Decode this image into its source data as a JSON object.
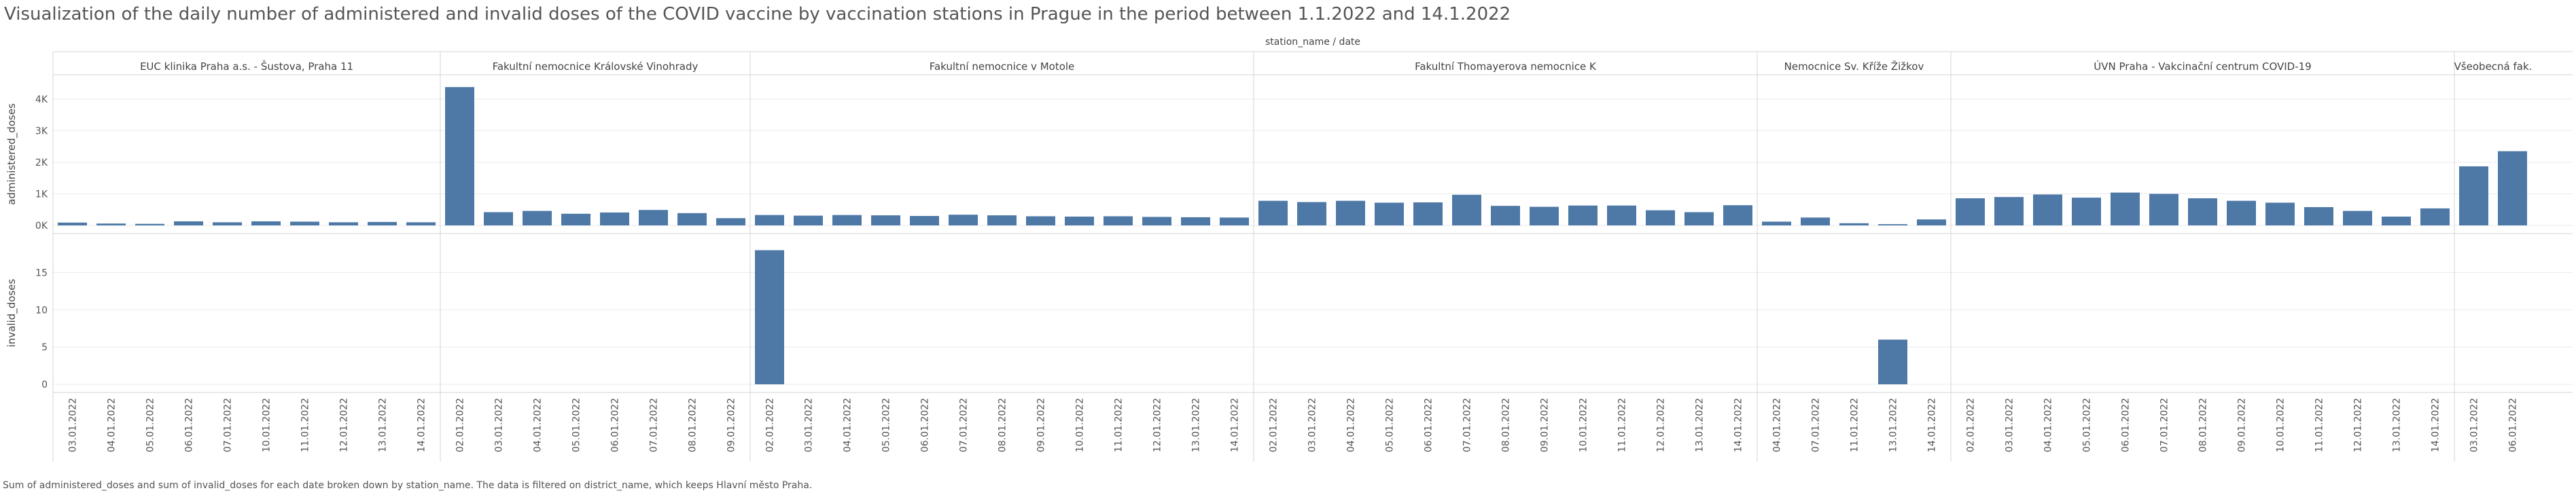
{
  "title": "Visualization of the daily number of administered and invalid doses of the COVID vaccine by vaccination stations in Prague in the period between 1.1.2022 and 14.1.2022",
  "caption": "Sum of administered_doses and sum of invalid_doses for each date broken down by station_name. The data is filtered on district_name, which keeps Hlavní město Praha.",
  "colors": {
    "bar": "#4e79a7",
    "grid": "#ebebeb",
    "divider": "#d4d4d4",
    "text": "#555555"
  },
  "chart_data": {
    "type": "bar",
    "header_label": "station_name  /  date",
    "panels": [
      {
        "ylabel": "administered_doses",
        "ylim": [
          0,
          4600
        ],
        "ticks": [
          0,
          1000,
          2000,
          3000,
          4000
        ],
        "tick_labels": [
          "0K",
          "1K",
          "2K",
          "3K",
          "4K"
        ],
        "key": "administered"
      },
      {
        "ylabel": "invalid_doses",
        "ylim": [
          0,
          19.5
        ],
        "ticks": [
          0,
          5,
          10,
          15
        ],
        "tick_labels": [
          "0",
          "5",
          "10",
          "15"
        ],
        "key": "invalid"
      }
    ],
    "stations": [
      {
        "name": "EUC klinika Praha a.s. - Šustova, Praha 11",
        "dates": [
          "03.01.2022",
          "04.01.2022",
          "05.01.2022",
          "06.01.2022",
          "07.01.2022",
          "10.01.2022",
          "11.01.2022",
          "12.01.2022",
          "13.01.2022",
          "14.01.2022"
        ],
        "administered": [
          90,
          60,
          50,
          130,
          100,
          130,
          120,
          100,
          110,
          100
        ],
        "invalid": [
          0,
          0,
          0,
          0,
          0,
          0,
          0,
          0,
          0,
          0
        ]
      },
      {
        "name": "Fakultní nemocnice Královské Vinohrady",
        "dates": [
          "02.01.2022",
          "03.01.2022",
          "04.01.2022",
          "05.01.2022",
          "06.01.2022",
          "07.01.2022",
          "08.01.2022",
          "09.01.2022"
        ],
        "administered": [
          4380,
          420,
          460,
          370,
          410,
          490,
          390,
          230
        ],
        "invalid": [
          0,
          0,
          0,
          0,
          0,
          0,
          0,
          0
        ]
      },
      {
        "name": "Fakultní nemocnice v Motole",
        "dates": [
          "02.01.2022",
          "03.01.2022",
          "04.01.2022",
          "05.01.2022",
          "06.01.2022",
          "07.01.2022",
          "08.01.2022",
          "09.01.2022",
          "10.01.2022",
          "11.01.2022",
          "12.01.2022",
          "13.01.2022",
          "14.01.2022"
        ],
        "administered": [
          330,
          310,
          330,
          320,
          300,
          340,
          320,
          290,
          280,
          290,
          270,
          260,
          250
        ],
        "invalid": [
          18,
          0,
          0,
          0,
          0,
          0,
          0,
          0,
          0,
          0,
          0,
          0,
          0
        ]
      },
      {
        "name": "Fakultní Thomayerova nemocnice K",
        "dates": [
          "02.01.2022",
          "03.01.2022",
          "04.01.2022",
          "05.01.2022",
          "06.01.2022",
          "07.01.2022",
          "08.01.2022",
          "09.01.2022",
          "10.01.2022",
          "11.01.2022",
          "12.01.2022",
          "13.01.2022",
          "14.01.2022"
        ],
        "administered": [
          780,
          740,
          780,
          720,
          730,
          970,
          620,
          590,
          630,
          630,
          480,
          420,
          640
        ],
        "invalid": [
          0,
          0,
          0,
          0,
          0,
          0,
          0,
          0,
          0,
          0,
          0,
          0,
          0
        ]
      },
      {
        "name": "Nemocnice Sv. Kříže Žižkov",
        "dates": [
          "04.01.2022",
          "07.01.2022",
          "11.01.2022",
          "13.01.2022",
          "14.01.2022"
        ],
        "administered": [
          120,
          250,
          70,
          40,
          190
        ],
        "invalid": [
          0,
          0,
          0,
          6,
          0
        ]
      },
      {
        "name": "ÚVN Praha - Vakcinační centrum COVID-19",
        "dates": [
          "02.01.2022",
          "03.01.2022",
          "04.01.2022",
          "05.01.2022",
          "06.01.2022",
          "07.01.2022",
          "08.01.2022",
          "09.01.2022",
          "10.01.2022",
          "11.01.2022",
          "12.01.2022",
          "13.01.2022",
          "14.01.2022"
        ],
        "administered": [
          860,
          900,
          980,
          880,
          1040,
          1000,
          860,
          780,
          720,
          580,
          460,
          280,
          540
        ],
        "invalid": [
          0,
          0,
          0,
          0,
          0,
          0,
          0,
          0,
          0,
          0,
          0,
          0,
          0
        ]
      },
      {
        "name": "Všeobecná fak.",
        "dates": [
          "03.01.2022",
          "06.01.2022"
        ],
        "administered": [
          1870,
          2350
        ],
        "invalid": [
          0,
          0
        ]
      }
    ]
  }
}
